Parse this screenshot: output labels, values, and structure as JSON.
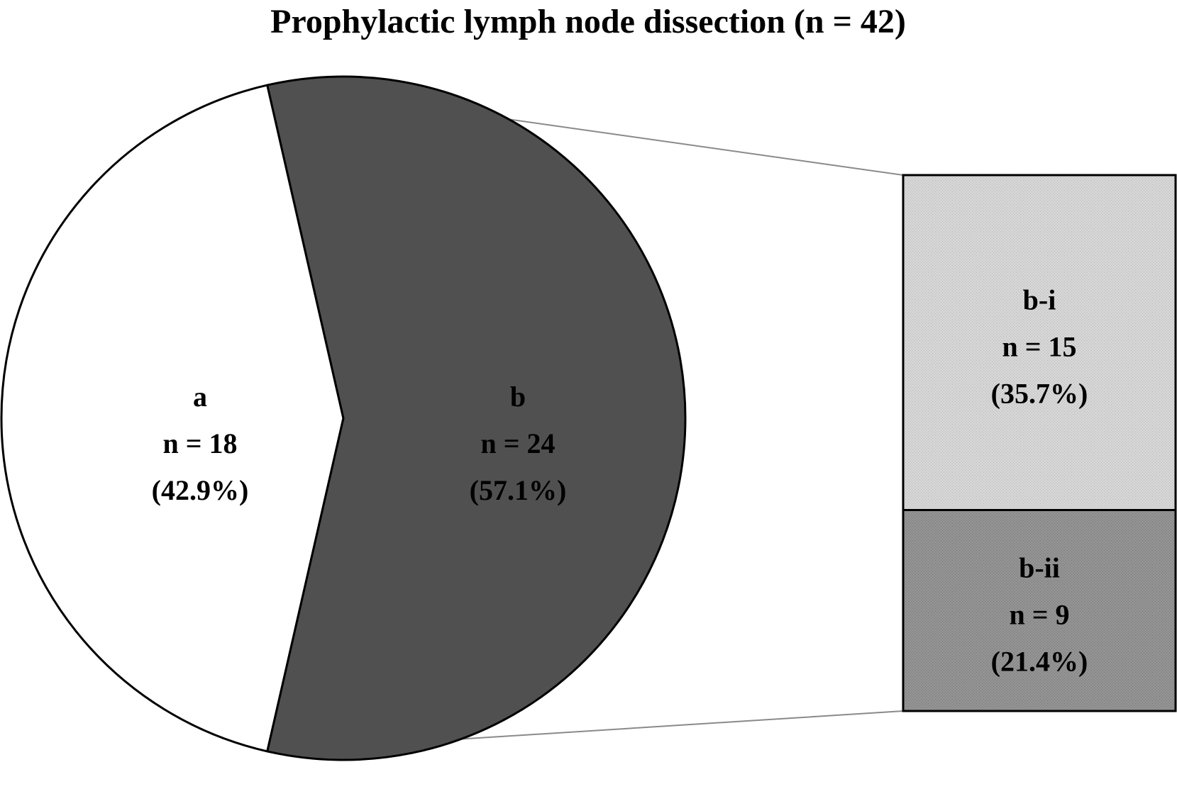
{
  "chart_data": {
    "type": "pie",
    "subtype": "bar-of-pie",
    "title": "Prophylactic lymph node dissection (n = 42)",
    "slices": [
      {
        "name": "a",
        "value": 18,
        "n_label": "n = 18",
        "pct_label": "(42.9%)",
        "color": "#ffffff"
      },
      {
        "name": "b",
        "value": 24,
        "n_label": "n = 24",
        "pct_label": "(57.1%)",
        "color": "#505050"
      }
    ],
    "breakdown": {
      "of": "b",
      "segments": [
        {
          "name": "b-i",
          "value": 15,
          "n_label": "n = 15",
          "pct_label": "(35.7%)",
          "color": "#d4d4d4"
        },
        {
          "name": "b-ii",
          "value": 9,
          "n_label": "n = 9",
          "pct_label": "(21.4%)",
          "color": "#909090"
        }
      ]
    }
  }
}
